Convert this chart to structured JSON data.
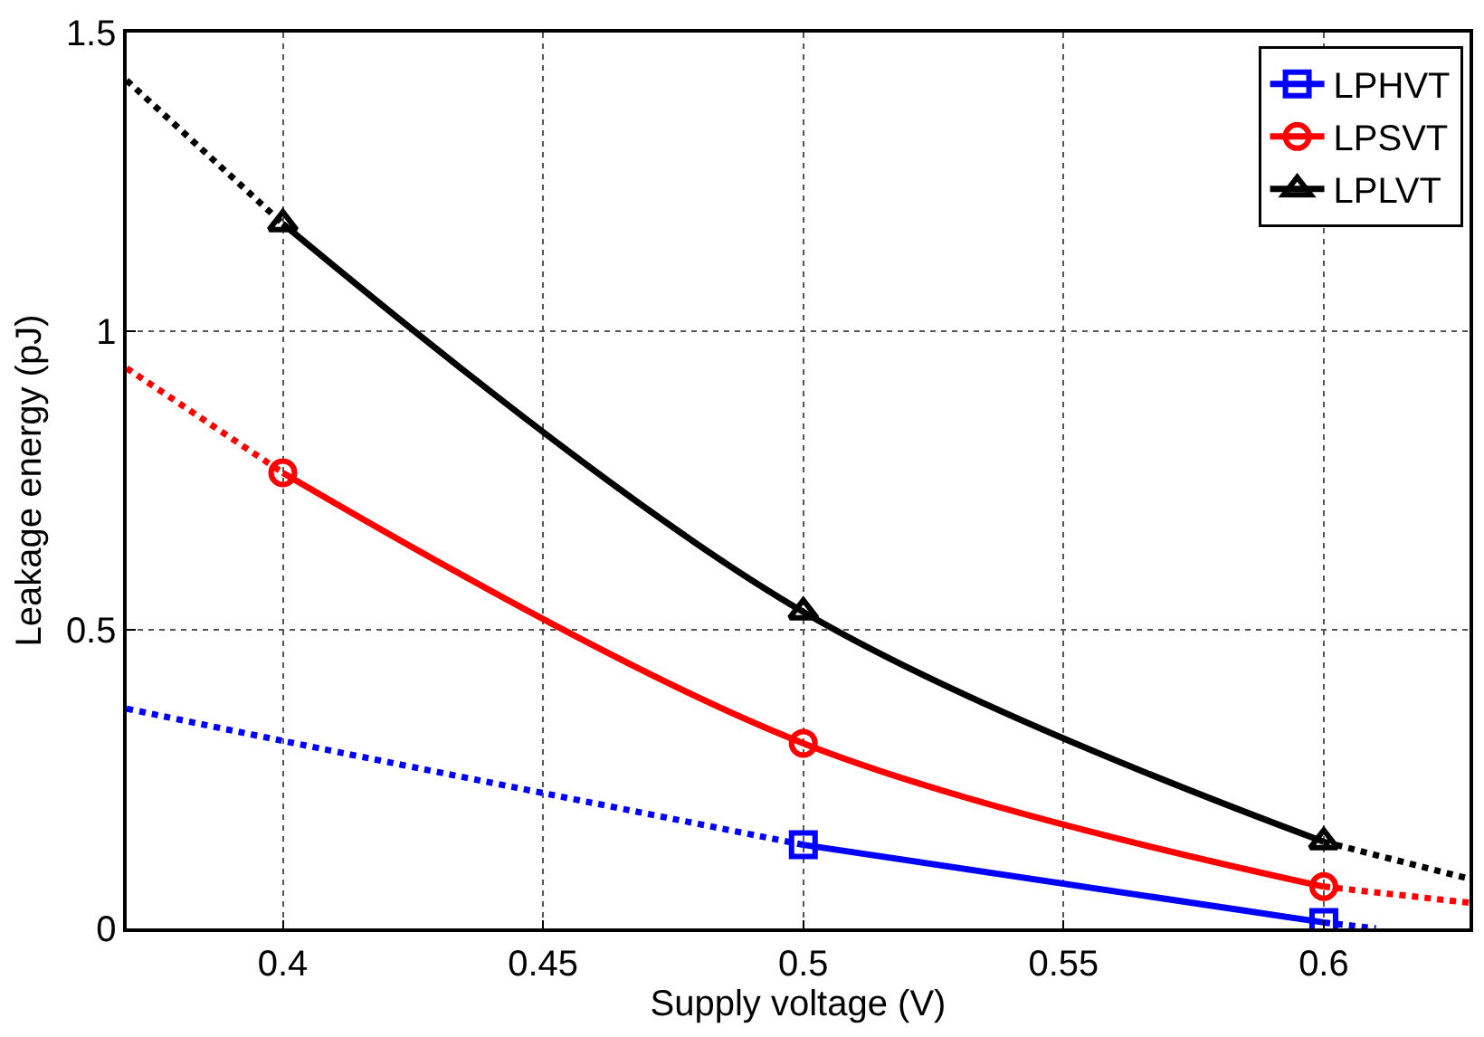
{
  "chart_data": {
    "type": "line",
    "xlabel": "Supply voltage (V)",
    "ylabel": "Leakage energy (pJ)",
    "xlim": [
      0.37,
      0.628
    ],
    "xticks": [
      0.4,
      0.45,
      0.5,
      0.55,
      0.6
    ],
    "ylim": [
      0,
      1.5
    ],
    "yticks": [
      0,
      0.5,
      1,
      1.5
    ],
    "grid": true,
    "legend": "top right",
    "series": [
      {
        "name": "LPHVT",
        "color": "#0000ff",
        "x": [
          0.5,
          0.6
        ],
        "values": [
          0.14,
          0.01
        ],
        "marker": "square",
        "line_style": "solid"
      },
      {
        "name": "LPSVT",
        "color": "#ff0000",
        "x": [
          0.4,
          0.5,
          0.6
        ],
        "values": [
          0.763,
          0.31,
          0.07
        ],
        "marker": "circle",
        "line_style": "solid"
      },
      {
        "name": "LPLVT",
        "color": "#000000",
        "x": [
          0.4,
          0.5,
          0.6
        ],
        "values": [
          1.18,
          0.53,
          0.145
        ],
        "marker": "triangle",
        "line_style": "solid"
      },
      {
        "color": "#0000ff",
        "x": [
          0.37,
          0.4,
          0.5
        ],
        "values": [
          0.368,
          0.314,
          0.14
        ],
        "marker": "none",
        "line_style": "dotted"
      },
      {
        "color": "#0000ff",
        "x": [
          0.6,
          0.61
        ],
        "values": [
          0.01,
          0
        ],
        "marker": "none",
        "line_style": "dotted"
      },
      {
        "color": "#ff0000",
        "x": [
          0.37,
          0.4
        ],
        "values": [
          0.938,
          0.763
        ],
        "marker": "none",
        "line_style": "dotted"
      },
      {
        "color": "#ff0000",
        "x": [
          0.6,
          0.628
        ],
        "values": [
          0.07,
          0.043
        ],
        "marker": "none",
        "line_style": "dotted"
      },
      {
        "color": "#000000",
        "x": [
          0.37,
          0.4
        ],
        "values": [
          1.42,
          1.18
        ],
        "marker": "none",
        "line_style": "dotted"
      },
      {
        "color": "#000000",
        "x": [
          0.6,
          0.628
        ],
        "values": [
          0.145,
          0.083
        ],
        "marker": "none",
        "line_style": "dotted"
      }
    ]
  }
}
